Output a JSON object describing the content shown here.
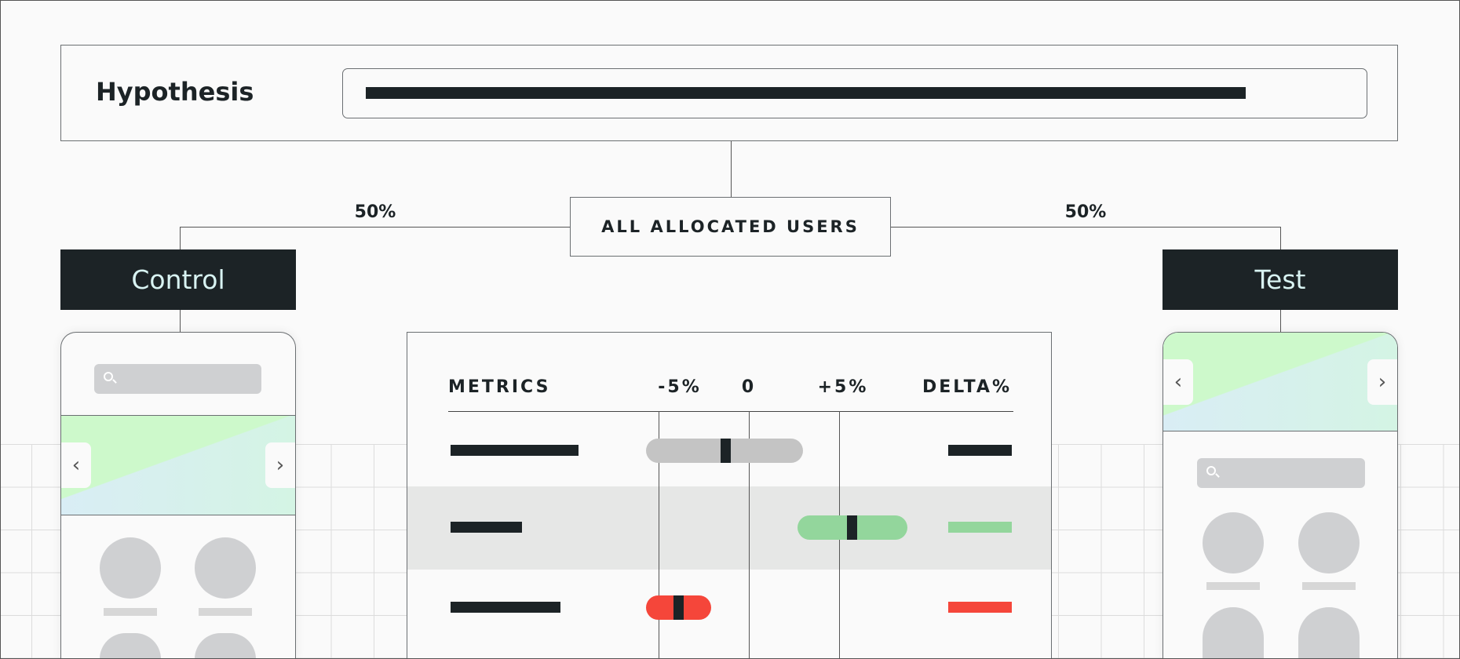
{
  "hypothesis": {
    "label": "Hypothesis"
  },
  "allocation": {
    "label": "ALL ALLOCATED USERS",
    "left_split": "50%",
    "right_split": "50%"
  },
  "groups": {
    "control": "Control",
    "test": "Test"
  },
  "metrics": {
    "headers": {
      "metrics": "METRICS",
      "minus": "-5%",
      "zero": "0",
      "plus": "+5%",
      "delta": "DELTA%"
    },
    "axis_range_percent": [
      -5,
      5
    ],
    "rows": [
      {
        "ci_low": -5.7,
        "ci_high": 3.0,
        "estimate": -1.3,
        "status": "neutral",
        "color": "#c4c4c4",
        "delta_color": "#1c2326",
        "highlighted": false
      },
      {
        "ci_low": 2.7,
        "ci_high": 8.8,
        "estimate": 5.7,
        "status": "positive",
        "color": "#93d69c",
        "delta_color": "#93d69c",
        "highlighted": true
      },
      {
        "ci_low": -5.7,
        "ci_high": -2.1,
        "estimate": -3.9,
        "status": "negative",
        "color": "#f5463a",
        "delta_color": "#f5463a",
        "highlighted": false
      }
    ]
  },
  "icons": {
    "search": "search-icon",
    "prev": "chevron-left-icon",
    "next": "chevron-right-icon"
  },
  "colors": {
    "dark": "#1c2326",
    "group_text": "#d8f3f2",
    "positive": "#93d69c",
    "negative": "#f5463a",
    "neutral": "#c4c4c4"
  }
}
